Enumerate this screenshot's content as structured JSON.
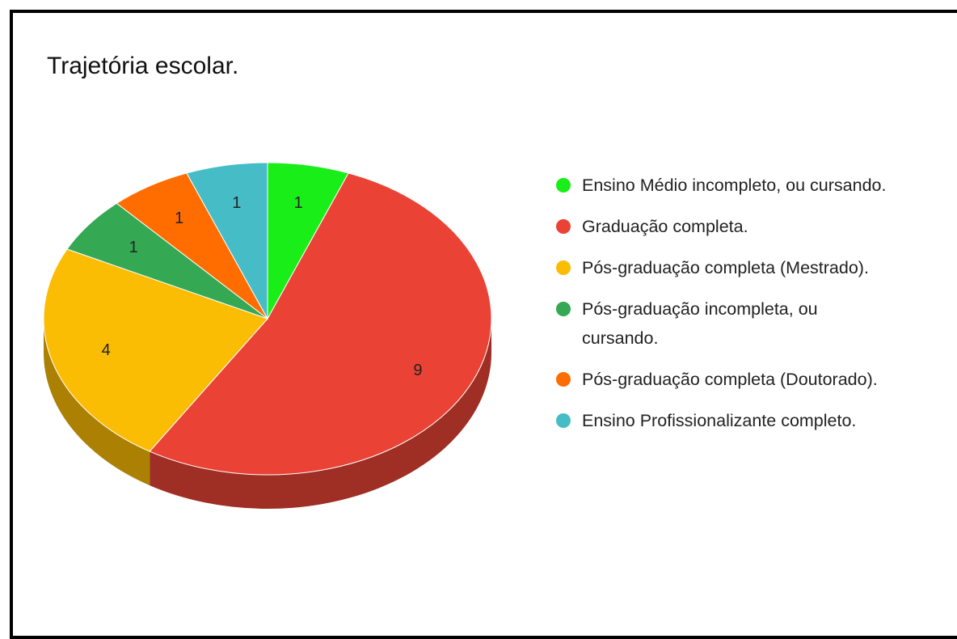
{
  "chart_data": {
    "type": "pie",
    "title": "Trajetória escolar.",
    "categories": [
      "Ensino Médio incompleto, ou cursando.",
      "Graduação completa.",
      "Pós-graduação completa (Mestrado).",
      "Pós-graduação incompleta, ou cursando.",
      "Pós-graduação completa (Doutorado).",
      "Ensino Profissionalizante completo."
    ],
    "values": [
      1,
      9,
      4,
      1,
      1,
      1
    ],
    "colors": [
      "#19ee19",
      "#ea4335",
      "#fbbc04",
      "#34a853",
      "#ff6d01",
      "#46bdc6"
    ],
    "three_d": true,
    "legend": "right"
  }
}
